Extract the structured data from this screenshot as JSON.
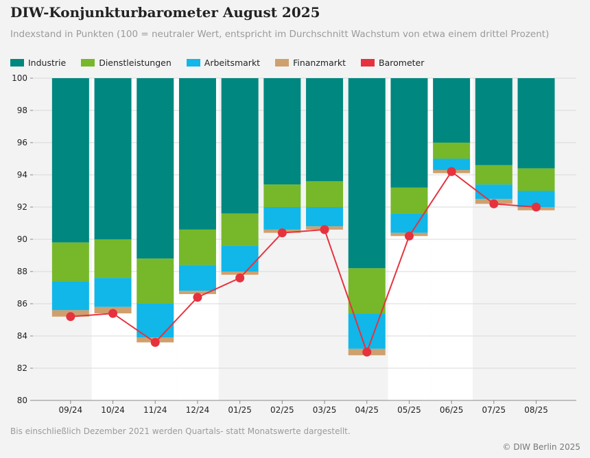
{
  "title": "DIW-Konjunkturbarometer August 2025",
  "subtitle": "Indexstand in Punkten (100 = neutraler Wert, entspricht im Durchschnitt Wachstum von etwa einem drittel Prozent)",
  "note": "Bis einschließlich Dezember 2021 werden Quartals- statt Monatswerte dargestellt.",
  "source": "© DIW Berlin 2025",
  "colors": {
    "industrie": "#00877f",
    "dienstleistungen": "#76b82a",
    "arbeitsmarkt": "#10b7e8",
    "finanzmarkt": "#cfa06e",
    "barometer": "#e6323e"
  },
  "chart_data": {
    "type": "bar",
    "stacked_from_top": true,
    "categories": [
      "09/24",
      "10/24",
      "11/24",
      "12/24",
      "01/25",
      "02/25",
      "03/25",
      "04/25",
      "05/25",
      "06/25",
      "07/25",
      "08/25"
    ],
    "ylim": [
      80,
      100
    ],
    "yticks": [
      80,
      82,
      84,
      86,
      88,
      90,
      92,
      94,
      96,
      98,
      100
    ],
    "grid": true,
    "legend_placement": "top-left",
    "series": [
      {
        "name": "Industrie",
        "key": "industrie",
        "values": [
          89.8,
          90.0,
          88.8,
          90.6,
          91.6,
          93.4,
          93.6,
          88.2,
          93.2,
          96.0,
          94.6,
          94.4
        ]
      },
      {
        "name": "Dienstleistungen",
        "key": "dienstleistungen",
        "values": [
          87.4,
          87.6,
          86.0,
          88.4,
          89.6,
          92.0,
          92.0,
          85.4,
          91.6,
          95.0,
          93.4,
          93.0
        ]
      },
      {
        "name": "Arbeitsmarkt",
        "key": "arbeitsmarkt",
        "values": [
          85.6,
          85.8,
          83.9,
          86.8,
          88.0,
          90.6,
          90.8,
          83.2,
          90.4,
          94.3,
          92.5,
          92.0
        ]
      },
      {
        "name": "Finanzmarkt",
        "key": "finanzmarkt",
        "values": [
          85.2,
          85.4,
          83.6,
          86.6,
          87.8,
          90.4,
          90.6,
          82.8,
          90.2,
          94.1,
          92.2,
          91.8
        ]
      },
      {
        "name": "Barometer",
        "key": "barometer",
        "type": "line",
        "values": [
          85.2,
          85.4,
          83.6,
          86.4,
          87.6,
          90.4,
          90.6,
          83.0,
          90.2,
          94.2,
          92.2,
          92.0
        ]
      }
    ]
  }
}
